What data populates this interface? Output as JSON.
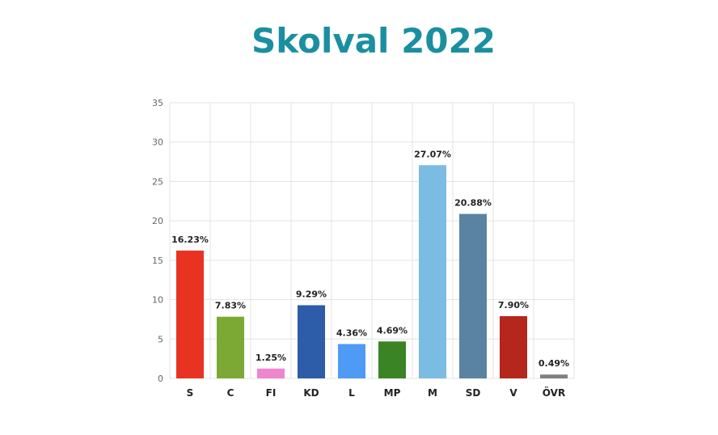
{
  "chart_data": {
    "type": "bar",
    "title": "Skolval 2022",
    "xlabel": "",
    "ylabel": "",
    "ylim": [
      0,
      35
    ],
    "yticks": [
      0,
      5,
      10,
      15,
      20,
      25,
      30,
      35
    ],
    "grid": true,
    "categories": [
      "S",
      "C",
      "FI",
      "KD",
      "L",
      "MP",
      "M",
      "SD",
      "V",
      "ÖVR"
    ],
    "values": [
      16.23,
      7.83,
      1.25,
      9.29,
      4.36,
      4.69,
      27.07,
      20.88,
      7.9,
      0.49
    ],
    "labels": [
      "16.23%",
      "7.83%",
      "1.25%",
      "9.29%",
      "4.36%",
      "4.69%",
      "27.07%",
      "20.88%",
      "7.90%",
      "0.49%"
    ],
    "colors": [
      "#e83323",
      "#7ca834",
      "#ef85cf",
      "#2d5ca9",
      "#4e9af4",
      "#3a8426",
      "#7bbce2",
      "#5a83a3",
      "#b5261c",
      "#808080"
    ],
    "title_color": "#1a8fa0"
  }
}
